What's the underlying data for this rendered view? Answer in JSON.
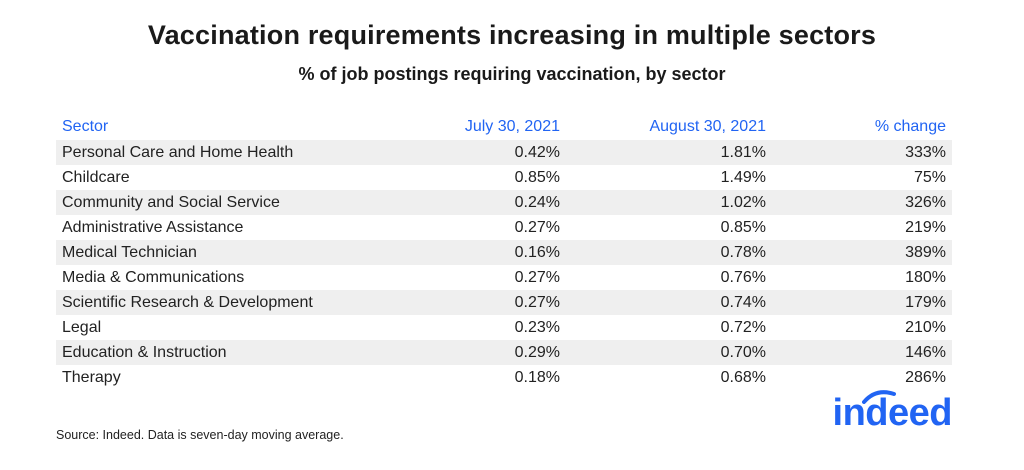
{
  "title": "Vaccination requirements increasing in multiple sectors",
  "subtitle": "% of job postings requiring vaccination, by sector",
  "chart_data": {
    "type": "table",
    "columns": [
      "Sector",
      "July 30, 2021",
      "August 30, 2021",
      "% change"
    ],
    "rows": [
      [
        "Personal Care and Home Health",
        "0.42%",
        "1.81%",
        "333%"
      ],
      [
        "Childcare",
        "0.85%",
        "1.49%",
        "75%"
      ],
      [
        "Community and Social Service",
        "0.24%",
        "1.02%",
        "326%"
      ],
      [
        "Administrative Assistance",
        "0.27%",
        "0.85%",
        "219%"
      ],
      [
        "Medical Technician",
        "0.16%",
        "0.78%",
        "389%"
      ],
      [
        "Media & Communications",
        "0.27%",
        "0.76%",
        "180%"
      ],
      [
        "Scientific Research & Development",
        "0.27%",
        "0.74%",
        "179%"
      ],
      [
        "Legal",
        "0.23%",
        "0.72%",
        "210%"
      ],
      [
        "Education & Instruction",
        "0.29%",
        "0.70%",
        "146%"
      ],
      [
        "Therapy",
        "0.18%",
        "0.68%",
        "286%"
      ]
    ]
  },
  "source": "Source: Indeed. Data is seven-day moving average.",
  "logo": {
    "text": "indeed",
    "color": "#2164f3"
  },
  "colors": {
    "header": "#2164f3",
    "stripe": "#efefef"
  }
}
